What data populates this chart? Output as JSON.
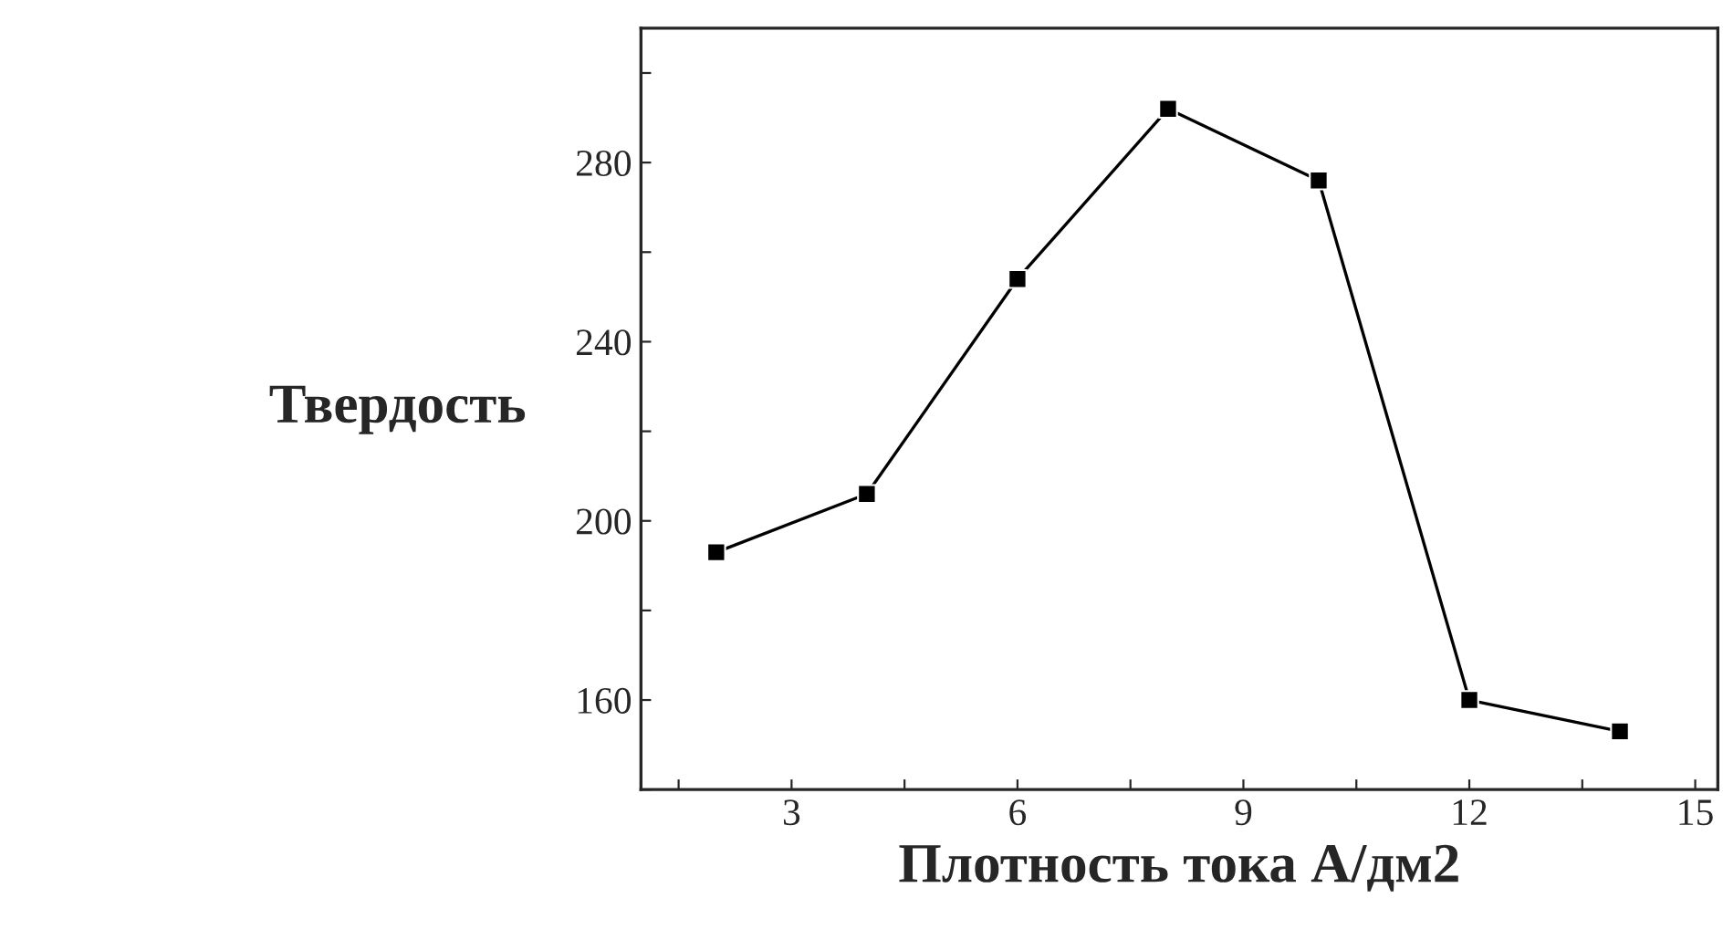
{
  "chart_data": {
    "type": "line",
    "xlabel": "Плотность тока А/дм2",
    "ylabel": "Твердость",
    "x": [
      2,
      4,
      6,
      8,
      10,
      12,
      14
    ],
    "series": [
      {
        "color": "#000000",
        "values": [
          193,
          206,
          254,
          292,
          276,
          160,
          153
        ]
      }
    ],
    "marker": "square",
    "line_style": "solid",
    "xlim": [
      1,
      15.3
    ],
    "xticks": [
      {
        "value": 1.5,
        "label": null
      },
      3,
      {
        "value": 4.5,
        "label": null
      },
      6,
      {
        "value": 7.5,
        "label": null
      },
      9,
      {
        "value": 10.5,
        "label": null
      },
      12,
      {
        "value": 13.5,
        "label": null
      },
      15
    ],
    "ylim": [
      140,
      310
    ],
    "yticks": [
      {
        "value": 140,
        "label": null
      },
      160,
      {
        "value": 180,
        "label": null
      },
      200,
      {
        "value": 220,
        "label": null
      },
      240,
      {
        "value": 260,
        "label": null
      },
      280,
      {
        "value": 300,
        "label": null
      }
    ],
    "grid": false,
    "legend": false
  }
}
